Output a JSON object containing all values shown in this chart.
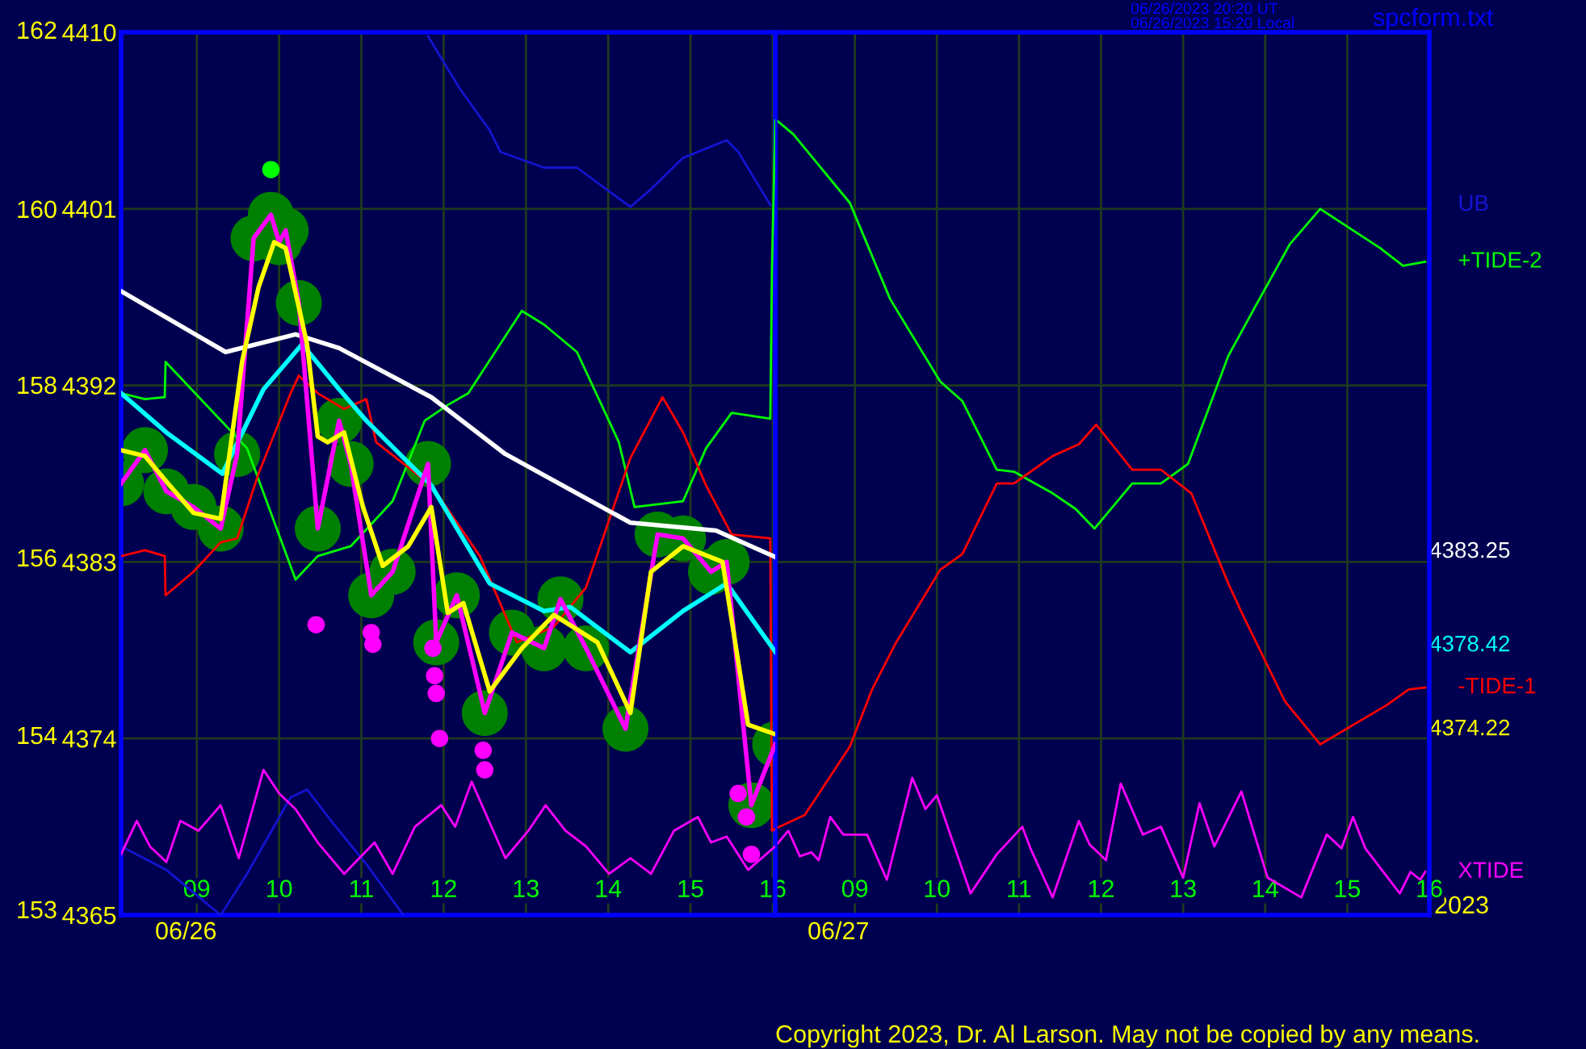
{
  "chart_data": [
    {
      "type": "line",
      "xlim": [
        8.08,
        16.03
      ],
      "xticks": [
        {
          "value": 9,
          "label": "09"
        },
        10,
        11,
        12,
        13,
        14,
        15,
        16
      ],
      "ylim": [
        4365,
        4410
      ],
      "yticks": [
        4365,
        4374,
        4383,
        4392,
        4401,
        4410
      ],
      "grid": true,
      "line_style": "solid",
      "series": [
        {
          "type": "bubble",
          "color": "#008000",
          "marker": "circle",
          "x": [
            8.08,
            8.37,
            8.63,
            8.96,
            9.29,
            9.49,
            9.69,
            9.9,
            10.0,
            10.08,
            10.24,
            10.47,
            10.73,
            10.87,
            11.12,
            11.38,
            11.81,
            11.91,
            12.16,
            12.5,
            12.83,
            13.22,
            13.42,
            13.73,
            14.21,
            14.6,
            14.91,
            15.25,
            15.44,
            15.74,
            16.03
          ],
          "values": [
            4387.0,
            4388.7,
            4386.6,
            4385.8,
            4384.7,
            4388.5,
            4399.5,
            4400.7,
            4399.3,
            4399.9,
            4396.2,
            4384.7,
            4390.2,
            4388.0,
            4381.3,
            4382.5,
            4388.0,
            4378.9,
            4381.3,
            4375.3,
            4379.4,
            4378.6,
            4381.1,
            4378.6,
            4374.5,
            4384.4,
            4384.2,
            4382.5,
            4383.0,
            4370.6,
            4373.7
          ],
          "sizes": [
            1,
            1,
            1,
            1,
            1,
            1,
            1,
            1,
            1,
            1,
            1,
            1,
            1,
            1,
            1,
            1,
            1,
            1,
            1,
            1,
            1,
            1,
            1,
            1,
            1,
            1,
            1,
            1,
            1,
            1,
            1
          ]
        },
        {
          "name": "UB",
          "color": "#1414d2",
          "x": [
            8.08,
            8.63,
            9.29,
            9.61,
            10.14,
            10.34,
            10.67,
            11.06,
            11.51,
            11.6,
            11.81,
            12.2,
            12.56,
            12.69,
            13.22,
            13.62,
            14.27,
            14.52,
            14.91,
            15.44,
            15.58,
            15.97
          ],
          "values": [
            4368.5,
            4367.3,
            4365.0,
            4367.1,
            4371.0,
            4371.4,
            4369.6,
            4367.6,
            4365.0,
            null,
            4409.8,
            4407.1,
            4405.0,
            4403.9,
            4403.1,
            4403.1,
            4401.1,
            4402.0,
            4403.6,
            4404.5,
            4403.9,
            4401.2
          ]
        },
        {
          "color": "#00ff00",
          "x": [
            8.08,
            8.37,
            8.61,
            8.62,
            9.16,
            9.61,
            10.2,
            10.47,
            10.87,
            11.38,
            11.77,
            12.05,
            12.3,
            12.95,
            13.22,
            13.62,
            14.13,
            14.32,
            14.91,
            15.19,
            15.5,
            15.97,
            15.99,
            16.03
          ],
          "values": [
            4391.6,
            4391.3,
            4391.4,
            4393.2,
            4390.8,
            4388.8,
            4382.1,
            4383.3,
            4383.8,
            4386.1,
            4390.2,
            4391.0,
            4391.6,
            4395.8,
            4395.1,
            4393.7,
            4389.1,
            4385.8,
            4386.1,
            4388.8,
            4390.6,
            4390.3,
            4397.9,
            4405.5
          ]
        },
        {
          "color": "#ff0000",
          "x": [
            8.08,
            8.37,
            8.61,
            8.62,
            8.96,
            9.29,
            9.49,
            9.75,
            10.14,
            10.24,
            10.47,
            10.79,
            11.06,
            11.18,
            11.85,
            12.44,
            12.89,
            13.34,
            13.73,
            14.27,
            14.66,
            14.91,
            15.19,
            15.5,
            15.97,
            15.99,
            16.03
          ],
          "values": [
            4383.3,
            4383.6,
            4383.3,
            4381.3,
            4382.5,
            4384.0,
            4384.2,
            4387.5,
            4391.6,
            4392.5,
            4391.6,
            4390.8,
            4391.3,
            4389.1,
            4386.9,
            4383.3,
            4378.9,
            4379.7,
            4381.7,
            4388.3,
            4391.4,
            4389.6,
            4386.9,
            4384.4,
            4384.2,
            4369.3,
            4369.4
          ]
        },
        {
          "color": "#ff00ff",
          "x": [
            8.08,
            8.27,
            8.43,
            8.63,
            8.8,
            9.02,
            9.29,
            9.51,
            9.81,
            10.0,
            10.2,
            10.47,
            10.79,
            11.16,
            11.38,
            11.65,
            11.97,
            12.14,
            12.34,
            12.75,
            13.03,
            13.24,
            13.48,
            13.73,
            14.01,
            14.27,
            14.52,
            14.8,
            15.09,
            15.25,
            15.44,
            15.7,
            16.03
          ],
          "values": [
            4368.1,
            4369.8,
            4368.5,
            4367.7,
            4369.8,
            4369.3,
            4370.6,
            4367.9,
            4372.4,
            4371.2,
            4370.4,
            4368.7,
            4367.1,
            4368.7,
            4367.1,
            4369.5,
            4370.6,
            4369.5,
            4371.8,
            4367.9,
            4369.3,
            4370.6,
            4369.3,
            4368.5,
            4367.1,
            4367.9,
            4367.1,
            4369.3,
            4370.0,
            4368.7,
            4369.0,
            4367.3,
            4368.5
          ]
        },
        {
          "color": "#ffffff",
          "x": [
            8.08,
            9.35,
            10.2,
            10.73,
            11.85,
            12.75,
            14.27,
            15.31,
            16.03
          ],
          "values": [
            4396.8,
            4393.7,
            4394.6,
            4393.9,
            4391.4,
            4388.5,
            4385.0,
            4384.6,
            4383.25
          ]
        },
        {
          "color": "#00ffff",
          "x": [
            8.08,
            8.63,
            9.31,
            9.81,
            10.28,
            10.73,
            11.06,
            11.85,
            12.56,
            13.22,
            13.54,
            14.27,
            14.91,
            15.44,
            16.03
          ],
          "values": [
            4391.6,
            4389.6,
            4387.5,
            4391.8,
            4394.1,
            4391.8,
            4390.2,
            4386.9,
            4381.9,
            4380.5,
            4380.7,
            4378.4,
            4380.5,
            4381.9,
            4378.42
          ]
        },
        {
          "color": "#ff00ff",
          "x": [
            8.08,
            8.37,
            8.63,
            8.96,
            9.29,
            9.49,
            9.69,
            9.9,
            10.0,
            10.08,
            10.24,
            10.47,
            10.73,
            10.87,
            11.12,
            11.38,
            11.81,
            11.91,
            12.16,
            12.5,
            12.83,
            13.22,
            13.42,
            13.73,
            14.21,
            14.6,
            14.91,
            15.25,
            15.44,
            15.74,
            16.03
          ],
          "values": [
            4387.0,
            4388.7,
            4386.6,
            4385.8,
            4384.7,
            4388.5,
            4399.5,
            4400.7,
            4399.3,
            4399.9,
            4396.2,
            4384.7,
            4390.2,
            4388.0,
            4381.3,
            4382.5,
            4388.0,
            4378.9,
            4381.3,
            4375.3,
            4379.4,
            4378.6,
            4381.1,
            4378.6,
            4374.5,
            4384.4,
            4384.2,
            4382.5,
            4383.0,
            4370.6,
            4373.7
          ]
        },
        {
          "color": "#ffff00",
          "x": [
            8.08,
            8.37,
            8.63,
            8.96,
            9.29,
            9.55,
            9.75,
            9.94,
            10.08,
            10.34,
            10.47,
            10.59,
            10.79,
            11.02,
            11.26,
            11.57,
            11.85,
            12.05,
            12.24,
            12.56,
            12.95,
            13.34,
            13.87,
            14.27,
            14.52,
            14.91,
            15.39,
            15.7,
            16.03
          ],
          "values": [
            4388.7,
            4388.4,
            4387.1,
            4385.5,
            4385.2,
            4393.2,
            4397.0,
            4399.3,
            4399.0,
            4394.1,
            4389.4,
            4389.1,
            4389.6,
            4385.8,
            4382.8,
            4383.8,
            4385.8,
            4380.4,
            4380.9,
            4376.4,
            4378.6,
            4380.3,
            4378.9,
            4375.3,
            4382.5,
            4383.8,
            4383.0,
            4374.7,
            4374.22
          ]
        },
        {
          "type": "scatter",
          "color": "#ff00ff",
          "marker": "circle",
          "x": [
            10.45,
            11.12,
            11.14,
            11.87,
            11.89,
            11.91,
            11.95,
            12.48,
            12.5,
            15.58,
            15.68,
            15.74
          ],
          "values": [
            4379.8,
            4379.4,
            4378.8,
            4378.6,
            4377.2,
            4376.3,
            4374.0,
            4373.4,
            4372.4,
            4371.2,
            4370.0,
            4368.1
          ]
        },
        {
          "type": "scatter",
          "color": "#00ff00",
          "marker": "circle",
          "x": [
            9.9
          ],
          "values": [
            4403.0
          ]
        }
      ],
      "annotations": [
        "162",
        "160",
        "158",
        "156",
        "154",
        "153",
        "06/26",
        "06/26/2023 20:20 UT",
        "06/26/2023 15:20 Local",
        "spcform.txt",
        "Copyright 2023, Dr. Al Larson. May not be copied by any means."
      ]
    },
    {
      "type": "line",
      "xlim": [
        8.03,
        16.0
      ],
      "xticks": [
        {
          "value": 9,
          "label": "09"
        },
        10,
        11,
        12,
        13,
        14,
        15,
        16
      ],
      "ylim": [
        4365,
        4410
      ],
      "yticks": [
        4365,
        4374,
        4383,
        4392,
        4401,
        4410
      ],
      "tick_labels": "x",
      "grid": true,
      "line_style": "solid",
      "series": [
        {
          "name": "+TIDE-2",
          "color": "#00ff00",
          "x": [
            8.05,
            8.25,
            8.94,
            9.43,
            10.04,
            10.31,
            10.73,
            10.94,
            11.41,
            11.69,
            11.92,
            12.38,
            12.73,
            13.06,
            13.55,
            13.89,
            14.3,
            14.67,
            15.4,
            15.68,
            15.95
          ],
          "values": [
            4405.5,
            4404.8,
            4401.3,
            4396.4,
            4392.2,
            4391.2,
            4387.7,
            4387.6,
            4386.5,
            4385.7,
            4384.7,
            4387.0,
            4387.0,
            4388.0,
            4393.5,
            4396.1,
            4399.2,
            4401.0,
            4399.0,
            4398.1,
            4398.3
          ]
        },
        {
          "name": "-TIDE-1",
          "color": "#ff0000",
          "x": [
            8.03,
            8.39,
            8.94,
            9.21,
            9.49,
            10.04,
            10.31,
            10.73,
            10.94,
            11.41,
            11.73,
            11.94,
            12.38,
            12.73,
            13.1,
            13.55,
            13.75,
            14.24,
            14.67,
            15.48,
            15.75,
            15.95
          ],
          "values": [
            4369.4,
            4370.1,
            4373.6,
            4376.5,
            4378.8,
            4382.6,
            4383.4,
            4387.0,
            4387.0,
            4388.4,
            4389.0,
            4390.0,
            4387.7,
            4387.7,
            4386.5,
            4381.9,
            4380.1,
            4375.9,
            4373.7,
            4375.7,
            4376.5,
            4376.6
          ]
        },
        {
          "name": "XTIDE",
          "color": "#ff00ff",
          "x": [
            8.03,
            8.19,
            8.33,
            8.47,
            8.56,
            8.7,
            8.86,
            9.15,
            9.39,
            9.7,
            9.86,
            10.0,
            10.41,
            10.73,
            11.04,
            11.14,
            11.41,
            11.73,
            11.86,
            12.06,
            12.24,
            12.51,
            12.73,
            13.0,
            13.2,
            13.38,
            13.71,
            14.03,
            14.44,
            14.75,
            14.93,
            15.07,
            15.22,
            15.64,
            15.77,
            15.89,
            15.95
          ],
          "values": [
            4368.5,
            4369.3,
            4368.0,
            4368.2,
            4367.8,
            4370.0,
            4369.1,
            4369.1,
            4366.8,
            4372.0,
            4370.4,
            4371.1,
            4366.1,
            4368.1,
            4369.5,
            4368.4,
            4365.9,
            4369.8,
            4368.6,
            4367.8,
            4371.7,
            4369.1,
            4369.5,
            4366.9,
            4370.7,
            4368.5,
            4371.3,
            4366.9,
            4365.9,
            4369.1,
            4368.4,
            4370.0,
            4368.4,
            4366.1,
            4367.2,
            4366.8,
            4367.2
          ]
        }
      ],
      "annotations": [
        "06/27",
        "2023",
        "4383.25",
        "4378.42",
        "4374.22"
      ]
    }
  ]
}
